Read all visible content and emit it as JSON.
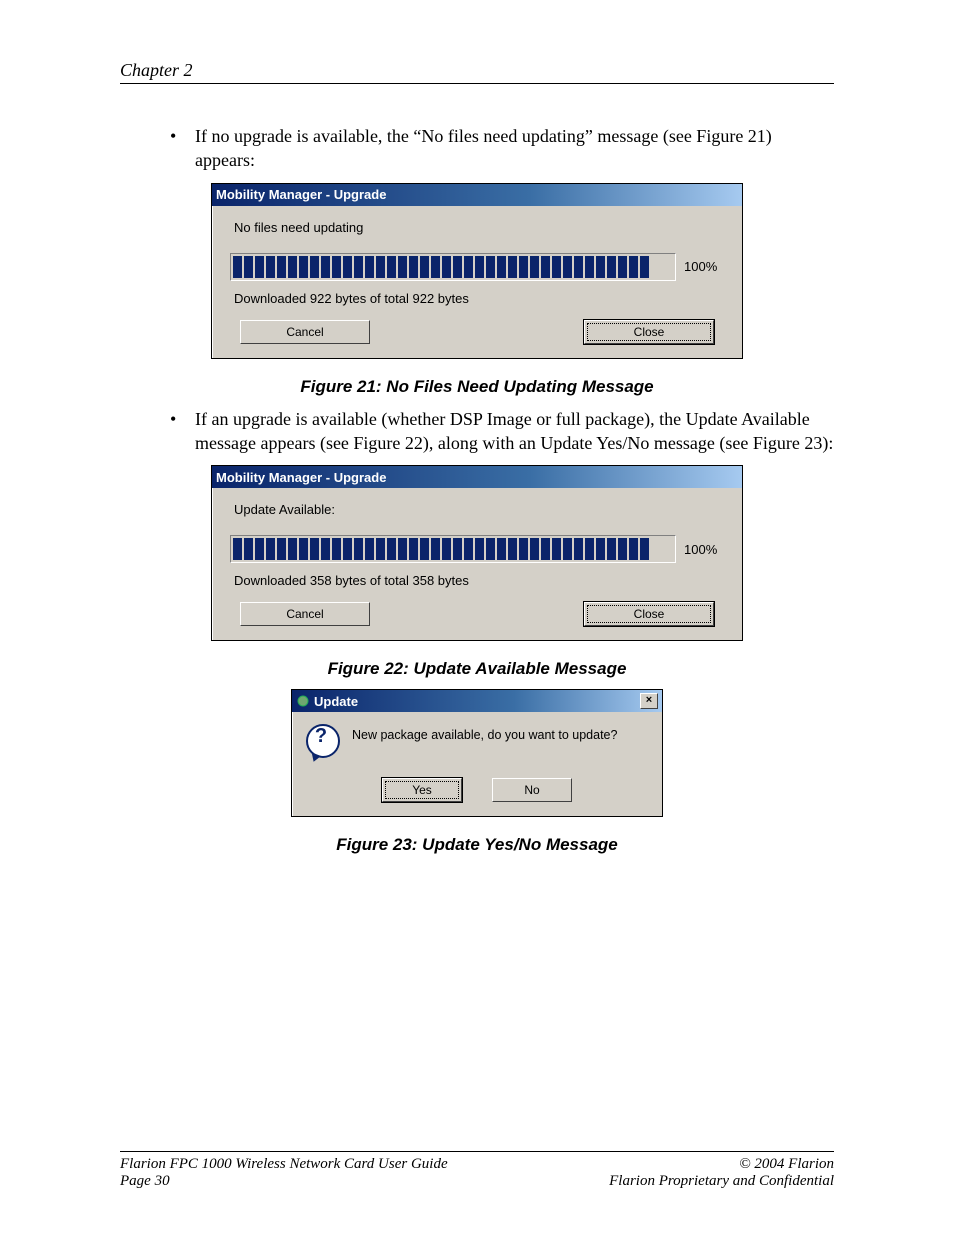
{
  "page": {
    "chapter": "Chapter 2",
    "bullet1": "If no upgrade is available, the “No files need updating” message (see Figure 21) appears:",
    "caption21": "Figure 21: No Files Need Updating Message",
    "bullet2": "If an upgrade is available (whether DSP Image or full package), the Update Available message appears (see Figure 22), along with an Update Yes/No message (see Figure 23):",
    "caption22": "Figure 22: Update Available Message",
    "caption23": "Figure 23: Update Yes/No Message"
  },
  "dialog21": {
    "title": "Mobility Manager - Upgrade",
    "status": "No files need updating",
    "percent": "100%",
    "segments": 38,
    "download": "Downloaded 922 bytes of total 922 bytes",
    "cancel": "Cancel",
    "close": "Close"
  },
  "dialog22": {
    "title": "Mobility Manager - Upgrade",
    "status": "Update Available:",
    "percent": "100%",
    "segments": 38,
    "download": "Downloaded 358 bytes of total 358 bytes",
    "cancel": "Cancel",
    "close": "Close"
  },
  "dialog23": {
    "title": "Update",
    "message": "New package available, do you want to update?",
    "yes": "Yes",
    "no": "No",
    "close_x": "×"
  },
  "footer": {
    "guide": "Flarion FPC 1000 Wireless Network Card User Guide",
    "copyright": "© 2004 Flarion",
    "page": "Page 30",
    "confidential": "Flarion Proprietary and Confidential"
  },
  "style": {
    "titlebar_gradient_from": "#0a246a",
    "titlebar_gradient_to": "#a6caf0",
    "dialog_bg": "#d4d0c8",
    "progress_color": "#0a246a"
  }
}
